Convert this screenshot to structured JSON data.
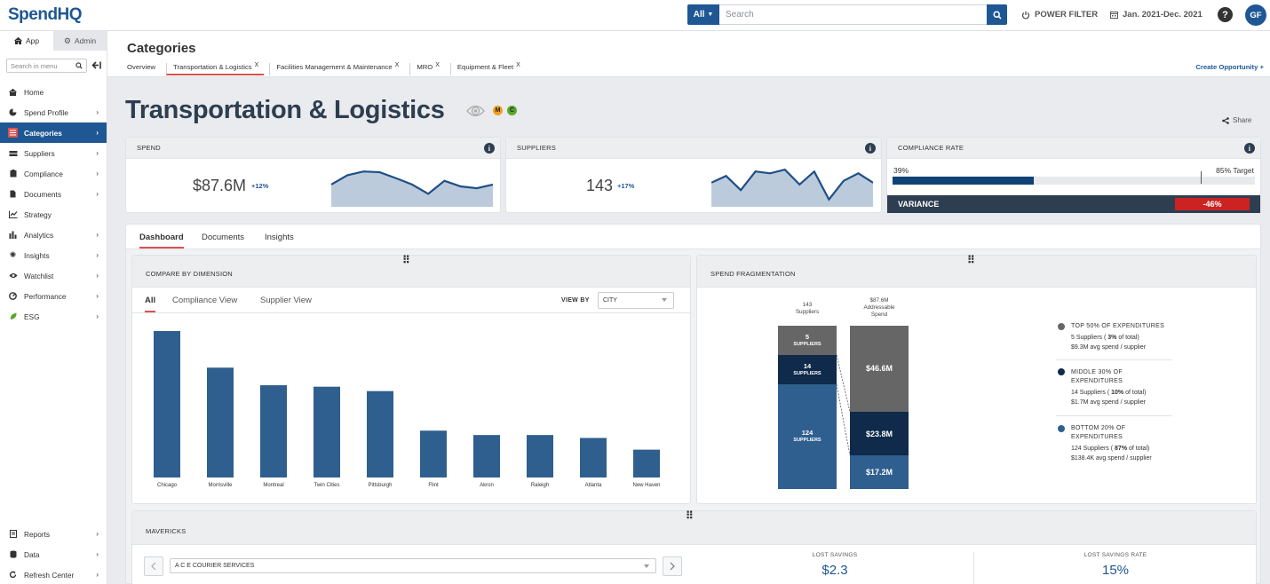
{
  "app": {
    "logo_text": "SpendHQ",
    "search": {
      "scope": "All",
      "placeholder": "Search"
    },
    "power_filter": "POWER FILTER",
    "date_range": "Jan. 2021-Dec. 2021",
    "help": "?",
    "user_initials": "GF"
  },
  "sidebar": {
    "tabs": [
      {
        "label": "App",
        "icon": "home-icon"
      },
      {
        "label": "Admin",
        "icon": "gear-icon"
      }
    ],
    "search_placeholder": "Search in menu",
    "items": [
      {
        "label": "Home",
        "icon": "home-icon",
        "chevron": false
      },
      {
        "label": "Spend Profile",
        "icon": "pie-chart-icon",
        "chevron": true
      },
      {
        "label": "Categories",
        "icon": "list-icon",
        "chevron": true,
        "active": true
      },
      {
        "label": "Suppliers",
        "icon": "truck-icon",
        "chevron": true
      },
      {
        "label": "Compliance",
        "icon": "clipboard-icon",
        "chevron": true
      },
      {
        "label": "Documents",
        "icon": "file-icon",
        "chevron": true
      },
      {
        "label": "Strategy",
        "icon": "line-chart-icon",
        "chevron": false
      },
      {
        "label": "Analytics",
        "icon": "bar-chart-icon",
        "chevron": true
      },
      {
        "label": "Insights",
        "icon": "lightbulb-icon",
        "chevron": true
      },
      {
        "label": "Watchlist",
        "icon": "eye-icon",
        "chevron": true
      },
      {
        "label": "Performance",
        "icon": "gauge-icon",
        "chevron": true
      },
      {
        "label": "ESG",
        "icon": "leaf-icon",
        "chevron": true
      }
    ],
    "bottom_items": [
      {
        "label": "Reports",
        "icon": "report-icon",
        "chevron": true
      },
      {
        "label": "Data",
        "icon": "database-icon",
        "chevron": true
      },
      {
        "label": "Refresh Center",
        "icon": "refresh-icon",
        "chevron": true
      }
    ]
  },
  "header": {
    "title": "Categories",
    "breadcrumbs": [
      {
        "label": "Overview",
        "closable": false
      },
      {
        "label": "Transportation & Logistics",
        "closable": true,
        "active": true
      },
      {
        "label": "Facilities Management & Maintenance",
        "closable": true
      },
      {
        "label": "MRO",
        "closable": true
      },
      {
        "label": "Equipment & Fleet",
        "closable": true
      }
    ],
    "close_symbol": "X",
    "create_opportunity": "Create Opportunity +"
  },
  "page": {
    "title": "Transportation & Logistics",
    "badges": [
      {
        "text": "M",
        "color": "#f0a020"
      },
      {
        "text": "C",
        "color": "#5aa82a"
      }
    ],
    "share": "Share"
  },
  "kpis": {
    "spend": {
      "label": "SPEND",
      "value": "$87.6M",
      "change": "+12%",
      "trend": [
        0.55,
        0.8,
        0.9,
        0.88,
        0.72,
        0.55,
        0.3,
        0.65,
        0.5,
        0.45,
        0.55
      ]
    },
    "suppliers": {
      "label": "SUPPLIERS",
      "value": "143",
      "change": "+17%",
      "trend": [
        0.6,
        0.78,
        0.4,
        0.9,
        0.85,
        0.95,
        0.55,
        0.9,
        0.15,
        0.65,
        0.85,
        0.6
      ]
    },
    "compliance": {
      "label": "COMPLIANCE RATE",
      "current": "39%",
      "current_fraction": 0.39,
      "target": "85% Target",
      "target_fraction": 0.85,
      "variance_label": "VARIANCE",
      "variance_value": "-46%"
    }
  },
  "dashboard": {
    "tabs": [
      "Dashboard",
      "Documents",
      "Insights"
    ],
    "active_tab": "Dashboard",
    "compare": {
      "title": "COMPARE BY DIMENSION",
      "subtabs": [
        "All",
        "Compliance View",
        "Supplier View"
      ],
      "view_by_label": "VIEW BY",
      "view_by_value": "CITY"
    },
    "fragmentation": {
      "title": "SPEND FRAGMENTATION",
      "col1_header": [
        "143",
        "Suppliers"
      ],
      "col2_header": [
        "$87.6M",
        "Addressable",
        "Spend"
      ],
      "supplier_segments": [
        {
          "count": "5",
          "unit": "SUPPLIERS",
          "share": 0.18
        },
        {
          "count": "14",
          "unit": "SUPPLIERS",
          "share": 0.17
        },
        {
          "count": "124",
          "unit": "SUPPLIERS",
          "share": 0.65
        }
      ],
      "spend_segments": [
        {
          "value": "$46.6M",
          "share": 0.53
        },
        {
          "value": "$23.8M",
          "share": 0.27
        },
        {
          "value": "$17.2M",
          "share": 0.2
        }
      ],
      "legend": [
        {
          "title": "TOP 50% OF EXPENDITURES",
          "line1_pre": "5 Suppliers ( ",
          "line1_bold": "3%",
          "line1_post": " of total)",
          "line2": "$9.3M avg spend / supplier",
          "color": "#666666"
        },
        {
          "title": "MIDDLE 30% OF EXPENDITURES",
          "line1_pre": "14 Suppliers ( ",
          "line1_bold": "10%",
          "line1_post": " of total)",
          "line2": "$1.7M avg spend / supplier",
          "color": "#0f2a4a"
        },
        {
          "title": "BOTTOM 20% OF EXPENDITURES",
          "line1_pre": "124 Suppliers ( ",
          "line1_bold": "87%",
          "line1_post": " of total)",
          "line2": "$138.4K avg spend / supplier",
          "color": "#2f5f8f"
        }
      ]
    },
    "mavericks": {
      "title": "MAVERICKS",
      "supplier_select": "A C E COURIER SERVICES",
      "lost_savings_label": "LOST SAVINGS",
      "lost_savings_value": "$2.3",
      "lost_savings_rate_label": "LOST SAVINGS RATE",
      "lost_savings_rate_value": "15%"
    }
  },
  "chart_data": {
    "type": "bar",
    "title": "",
    "xlabel": "",
    "ylabel": "",
    "categories": [
      "Chicago",
      "Morrisville",
      "Montreal",
      "Twin Cities",
      "Pittsburgh",
      "Flint",
      "Akron",
      "Raleigh",
      "Atlanta",
      "New Haven"
    ],
    "values": [
      100,
      75,
      63,
      62,
      59,
      32,
      29,
      29,
      27,
      19
    ],
    "color": "#2f5f8f"
  }
}
